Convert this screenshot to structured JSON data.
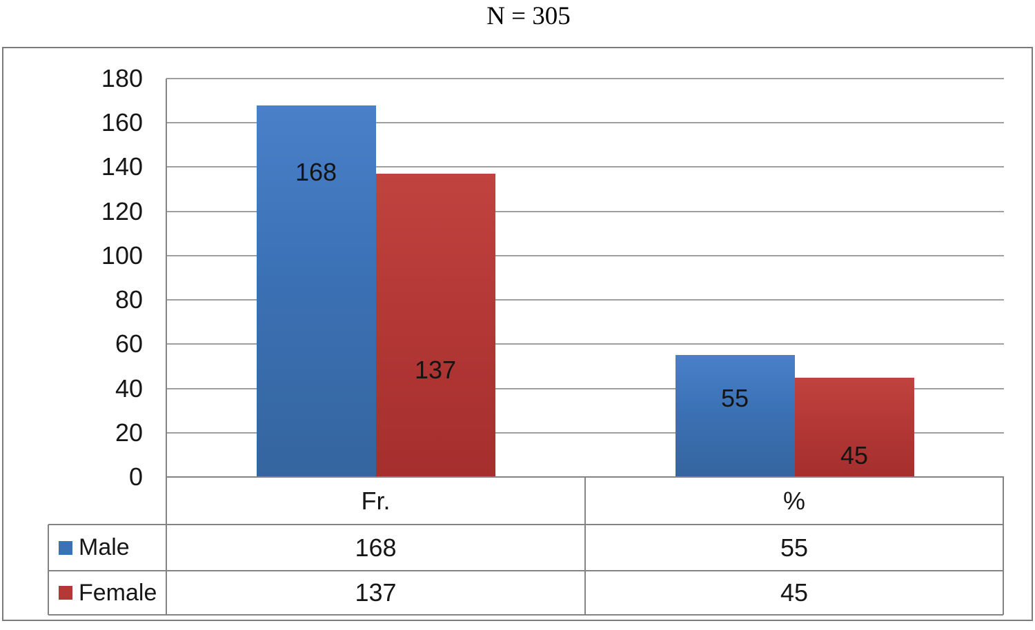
{
  "title": "N = 305",
  "chart_data": {
    "type": "bar",
    "title": "N = 305",
    "categories": [
      "Fr.",
      "%"
    ],
    "series": [
      {
        "name": "Male",
        "color": "#3b71b5",
        "color_top": "#4a80c8",
        "color_bottom": "#35659f",
        "values": [
          168,
          55
        ]
      },
      {
        "name": "Female",
        "color": "#b43836",
        "color_top": "#c14340",
        "color_bottom": "#a52f2e",
        "values": [
          137,
          45
        ]
      }
    ],
    "ylim": [
      0,
      180
    ],
    "yticks": [
      0,
      20,
      40,
      60,
      80,
      100,
      120,
      140,
      160,
      180
    ],
    "grid": true,
    "data_labels": true,
    "label_pos_frac": [
      [
        0.18,
        0.356
      ],
      [
        0.648,
        0.786
      ]
    ],
    "legend_position": "bottom-table"
  },
  "data_table": {
    "column_headers": [
      "Fr.",
      "%"
    ],
    "rows": [
      {
        "label": "Male",
        "values": [
          "168",
          "55"
        ]
      },
      {
        "label": "Female",
        "values": [
          "137",
          "45"
        ]
      }
    ]
  },
  "colors": {
    "male": "#3b71b5",
    "female": "#b43836",
    "gridline": "#9e9e9e",
    "table_line": "#838383",
    "frame": "#7a7a7a",
    "text": "#161616"
  }
}
